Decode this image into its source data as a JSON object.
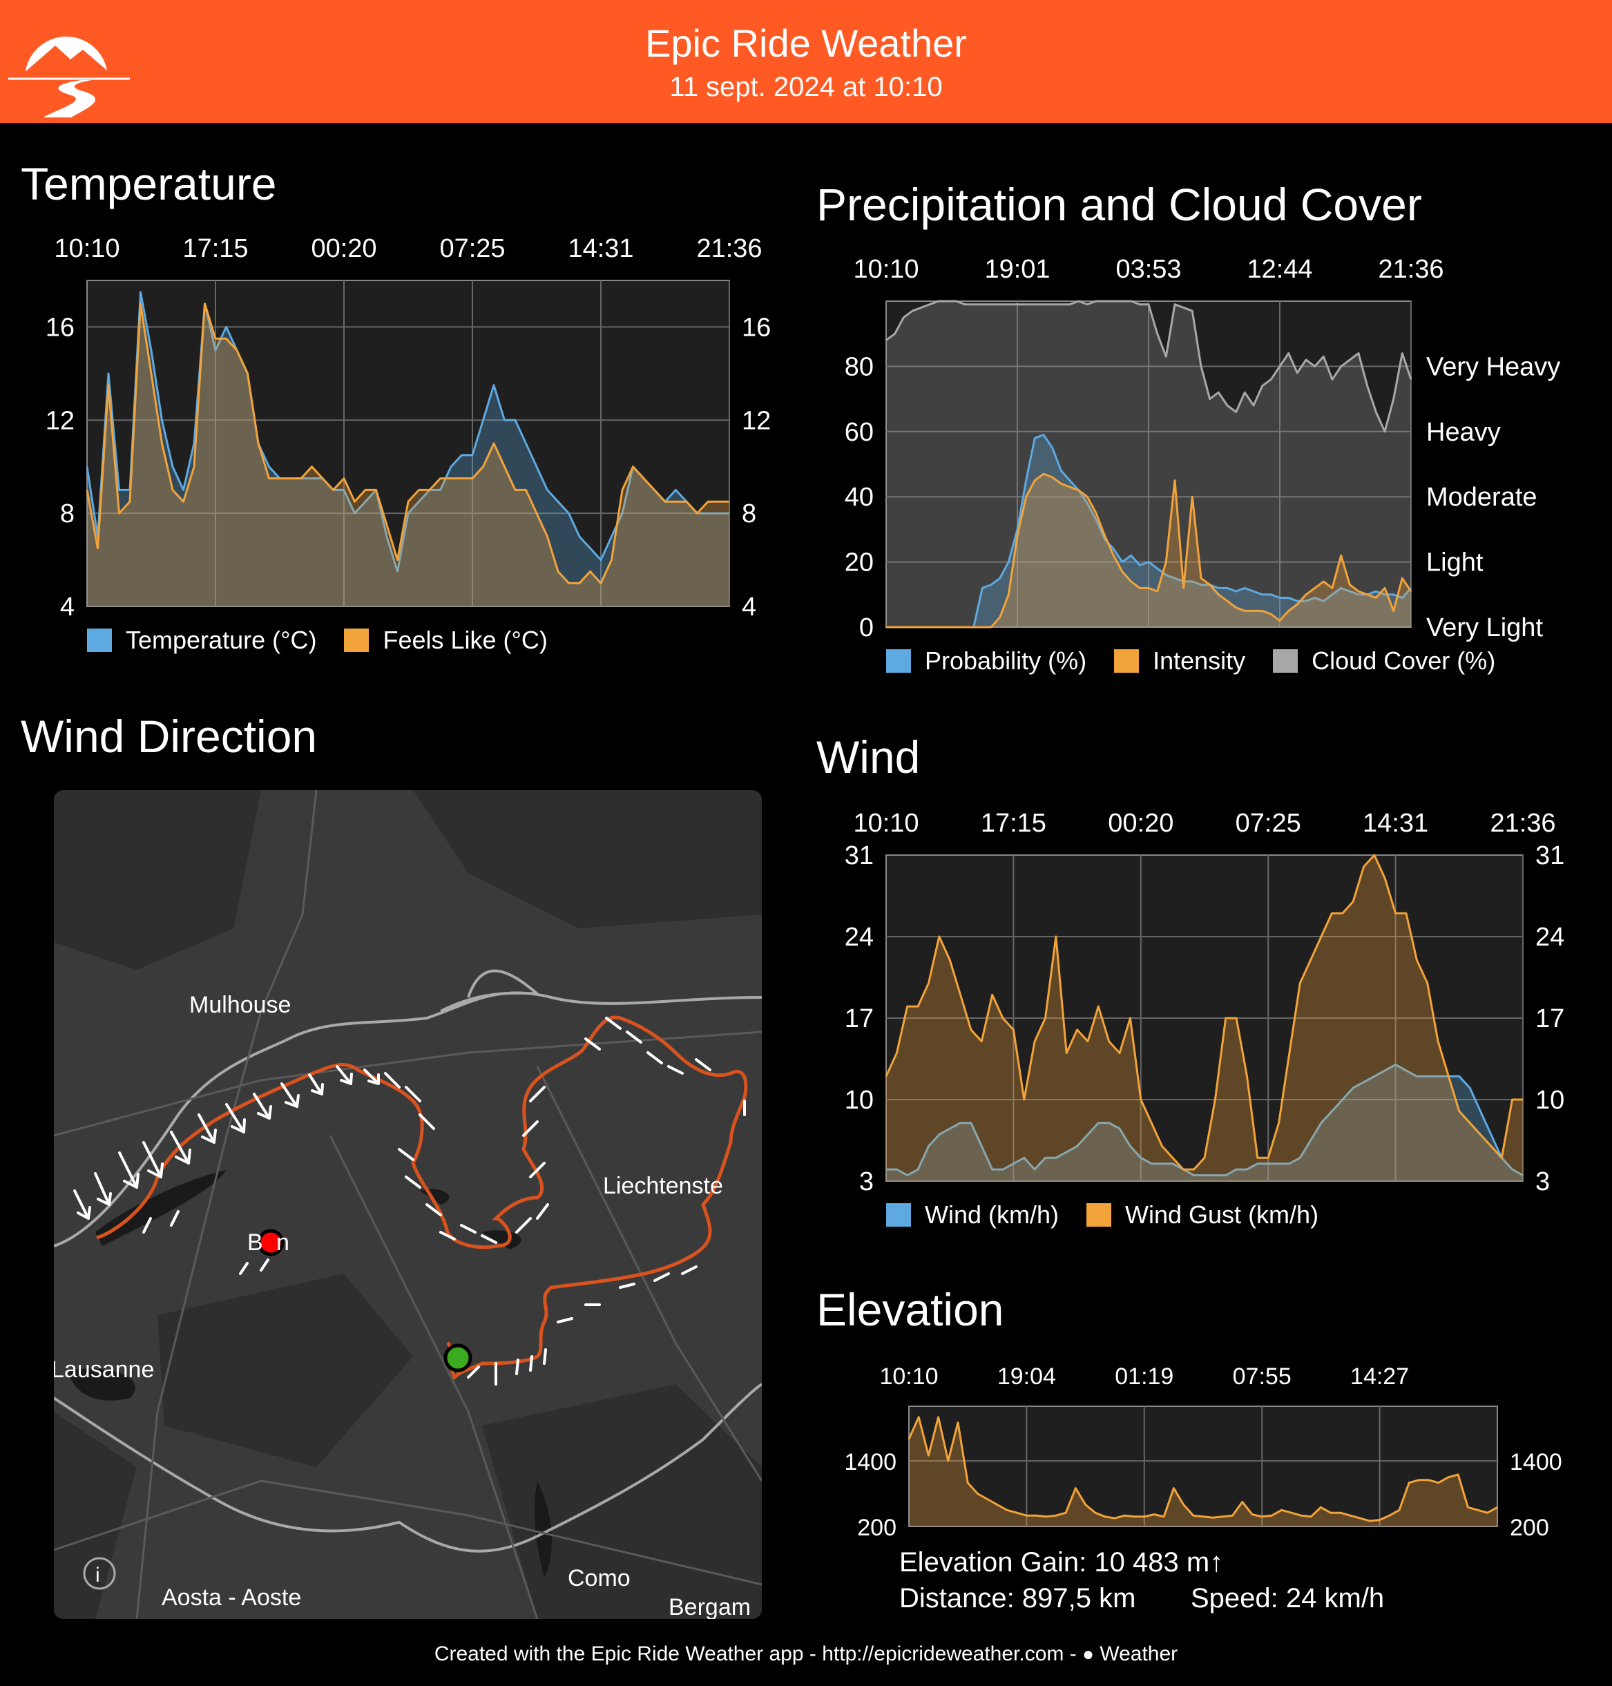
{
  "header": {
    "title": "Epic Ride Weather",
    "subtitle": "11 sept. 2024 at 10:10",
    "logo_icon": "mountain-road-logo-icon",
    "background": "#FF5A24"
  },
  "sections": {
    "temperature": "Temperature",
    "precipitation": "Precipitation and Cloud Cover",
    "wind_direction": "Wind Direction",
    "wind": "Wind",
    "elevation": "Elevation"
  },
  "colors": {
    "blue": "#5DA9E0",
    "orange": "#F2A33A",
    "gray": "#A8A8A8",
    "route": "#D9531E",
    "plot_bg": "#1F1F1F"
  },
  "map": {
    "labels": [
      "Mulhouse",
      "Liechtenste",
      "B",
      "n",
      "Lausanne",
      "Aosta - Aoste",
      "Como",
      "Bergam"
    ],
    "info_icon": "info-icon",
    "start_marker": "green-start-marker",
    "end_marker": "red-end-marker"
  },
  "elevation_stats": {
    "gain": "Elevation Gain: 10 483 m↑",
    "distance": "Distance: 897,5 km",
    "speed": "Speed: 24 km/h"
  },
  "footer": {
    "text": "Created with the Epic Ride Weather app - http://epicrideweather.com - ",
    "weather_label": "Weather",
    "apple_icon": "apple-icon"
  },
  "chart_data": [
    {
      "id": "temperature",
      "type": "area",
      "title": "Temperature",
      "x_ticks": [
        "10:10",
        "17:15",
        "00:20",
        "07:25",
        "14:31",
        "21:36"
      ],
      "x": [
        0,
        1,
        2,
        3,
        4,
        5,
        6,
        7,
        8,
        9,
        10,
        11,
        12,
        13,
        14,
        15,
        16,
        17,
        18,
        19,
        20,
        21,
        22,
        23,
        24,
        25,
        26,
        27,
        28,
        29,
        30,
        31,
        32,
        33,
        34,
        35,
        36,
        37,
        38,
        39,
        40,
        41,
        42,
        43,
        44,
        45,
        46,
        47,
        48,
        49,
        50,
        51,
        52,
        53,
        54,
        55,
        56,
        57,
        58,
        59,
        60
      ],
      "ylim": [
        4,
        18
      ],
      "yticks": [
        4,
        8,
        12,
        16
      ],
      "grid": true,
      "legend": "bottom",
      "series": [
        {
          "name": "Temperature (°C)",
          "color": "#5DA9E0",
          "values": [
            10,
            7,
            14,
            9,
            9,
            17.5,
            15,
            12,
            10,
            9,
            11,
            17,
            15,
            16,
            15,
            14,
            11,
            10,
            9.5,
            9.5,
            9.5,
            9.5,
            9.5,
            9,
            9,
            8,
            8.5,
            9,
            7,
            5.5,
            8,
            8.5,
            9,
            9,
            10,
            10.5,
            10.5,
            12,
            13.5,
            12,
            12,
            11,
            10,
            9,
            8.5,
            8,
            7,
            6.5,
            6,
            7,
            8,
            10,
            9.5,
            9,
            8.5,
            9,
            8.5,
            8,
            8,
            8,
            8
          ]
        },
        {
          "name": "Feels Like (°C)",
          "color": "#F2A33A",
          "values": [
            9,
            6.5,
            13.5,
            8,
            8.5,
            17,
            14,
            11,
            9,
            8.5,
            10,
            17,
            15.5,
            15.5,
            15,
            14,
            11,
            9.5,
            9.5,
            9.5,
            9.5,
            10,
            9.5,
            9,
            9.5,
            8.5,
            9,
            9,
            7.5,
            6,
            8.5,
            9,
            9,
            9.5,
            9.5,
            9.5,
            9.5,
            10,
            11,
            10,
            9,
            9,
            8,
            7,
            5.5,
            5,
            5,
            5.5,
            5,
            6,
            9,
            10,
            9.5,
            9,
            8.5,
            8.5,
            8.5,
            8,
            8.5,
            8.5,
            8.5
          ]
        }
      ]
    },
    {
      "id": "precipitation",
      "type": "area",
      "title": "Precipitation and Cloud Cover",
      "x_ticks": [
        "10:10",
        "19:01",
        "03:53",
        "12:44",
        "21:36"
      ],
      "x": [
        0,
        1,
        2,
        3,
        4,
        5,
        6,
        7,
        8,
        9,
        10,
        11,
        12,
        13,
        14,
        15,
        16,
        17,
        18,
        19,
        20,
        21,
        22,
        23,
        24,
        25,
        26,
        27,
        28,
        29,
        30,
        31,
        32,
        33,
        34,
        35,
        36,
        37,
        38,
        39,
        40,
        41,
        42,
        43,
        44,
        45,
        46,
        47,
        48,
        49,
        50,
        51,
        52,
        53,
        54,
        55,
        56,
        57,
        58,
        59,
        60
      ],
      "ylim": [
        0,
        100
      ],
      "yticks": [
        0,
        20,
        40,
        60,
        80
      ],
      "right_axis_labels": [
        "Very Light",
        "Light",
        "Moderate",
        "Heavy",
        "Very Heavy"
      ],
      "grid": true,
      "legend": "bottom",
      "series": [
        {
          "name": "Probability (%)",
          "color": "#5DA9E0",
          "values": [
            0,
            0,
            0,
            0,
            0,
            0,
            0,
            0,
            0,
            0,
            0,
            12,
            13,
            15,
            20,
            30,
            45,
            58,
            59,
            55,
            48,
            45,
            42,
            38,
            33,
            27,
            24,
            20,
            22,
            19,
            20,
            18,
            16,
            15,
            14,
            14,
            13,
            13,
            12,
            12,
            11,
            12,
            11,
            10,
            10,
            9,
            9,
            8,
            8,
            9,
            8,
            10,
            12,
            11,
            10,
            10,
            11,
            10,
            10,
            9,
            12
          ]
        },
        {
          "name": "Intensity",
          "color": "#F2A33A",
          "values": [
            0,
            0,
            0,
            0,
            0,
            0,
            0,
            0,
            0,
            0,
            0,
            0,
            0,
            3,
            10,
            28,
            40,
            45,
            47,
            46,
            44,
            43,
            42,
            40,
            35,
            28,
            22,
            17,
            14,
            12,
            12,
            11,
            20,
            45,
            12,
            40,
            15,
            13,
            10,
            8,
            6,
            5,
            5,
            5,
            4,
            2,
            5,
            7,
            10,
            12,
            14,
            12,
            22,
            13,
            11,
            10,
            9,
            12,
            5,
            15,
            11
          ]
        },
        {
          "name": "Cloud Cover (%)",
          "color": "#A8A8A8",
          "values": [
            88,
            90,
            95,
            97,
            98,
            99,
            100,
            100,
            100,
            99,
            99,
            99,
            99,
            99,
            99,
            99,
            99,
            99,
            99,
            99,
            99,
            99,
            100,
            99,
            100,
            100,
            100,
            100,
            100,
            99,
            99,
            90,
            83,
            99,
            98,
            97,
            80,
            70,
            72,
            68,
            66,
            72,
            68,
            74,
            76,
            80,
            84,
            78,
            82,
            80,
            83,
            76,
            80,
            82,
            84,
            74,
            66,
            60,
            70,
            84,
            76
          ]
        }
      ]
    },
    {
      "id": "wind",
      "type": "area",
      "title": "Wind",
      "x_ticks": [
        "10:10",
        "17:15",
        "00:20",
        "07:25",
        "14:31",
        "21:36"
      ],
      "x": [
        0,
        1,
        2,
        3,
        4,
        5,
        6,
        7,
        8,
        9,
        10,
        11,
        12,
        13,
        14,
        15,
        16,
        17,
        18,
        19,
        20,
        21,
        22,
        23,
        24,
        25,
        26,
        27,
        28,
        29,
        30,
        31,
        32,
        33,
        34,
        35,
        36,
        37,
        38,
        39,
        40,
        41,
        42,
        43,
        44,
        45,
        46,
        47,
        48,
        49,
        50,
        51,
        52,
        53,
        54,
        55,
        56,
        57,
        58,
        59,
        60
      ],
      "ylim": [
        3,
        31
      ],
      "yticks": [
        3,
        10,
        17,
        24,
        31
      ],
      "grid": true,
      "legend": "bottom",
      "series": [
        {
          "name": "Wind (km/h)",
          "color": "#5DA9E0",
          "values": [
            4,
            4,
            3.5,
            4,
            6,
            7,
            7.5,
            8,
            8,
            6,
            4,
            4,
            4.5,
            5,
            4,
            5,
            5,
            5.5,
            6,
            7,
            8,
            8,
            7.5,
            6,
            5,
            4.5,
            4.5,
            4.5,
            4,
            3.5,
            3.5,
            3.5,
            3.5,
            4,
            4,
            4.5,
            4.5,
            4.5,
            4.5,
            5,
            6.5,
            8,
            9,
            10,
            11,
            11.5,
            12,
            12.5,
            13,
            12.5,
            12,
            12,
            12,
            12,
            12,
            11,
            9,
            7,
            5,
            4,
            3.5
          ]
        },
        {
          "name": "Wind Gust (km/h)",
          "color": "#F2A33A",
          "values": [
            12,
            14,
            18,
            18,
            20,
            24,
            22,
            19,
            16,
            15,
            19,
            17,
            16,
            10,
            15,
            17,
            24,
            14,
            16,
            15,
            18,
            15,
            14,
            17,
            10,
            8,
            6,
            5,
            4,
            4,
            5,
            10,
            17,
            17,
            12,
            5,
            5,
            8,
            14,
            20,
            22,
            24,
            26,
            26,
            27,
            30,
            31,
            29,
            26,
            26,
            22,
            20,
            15,
            12,
            9,
            8,
            7,
            6,
            5,
            10,
            10
          ]
        }
      ]
    },
    {
      "id": "elevation",
      "type": "area",
      "title": "Elevation",
      "x_ticks": [
        "10:10",
        "19:04",
        "01:19",
        "07:55",
        "14:27"
      ],
      "x": [
        0,
        1,
        2,
        3,
        4,
        5,
        6,
        7,
        8,
        9,
        10,
        11,
        12,
        13,
        14,
        15,
        16,
        17,
        18,
        19,
        20,
        21,
        22,
        23,
        24,
        25,
        26,
        27,
        28,
        29,
        30,
        31,
        32,
        33,
        34,
        35,
        36,
        37,
        38,
        39,
        40,
        41,
        42,
        43,
        44,
        45,
        46,
        47,
        48,
        49,
        50,
        51,
        52,
        53,
        54,
        55,
        56,
        57,
        58,
        59,
        60
      ],
      "ylim": [
        200,
        2400
      ],
      "yticks": [
        200,
        1400
      ],
      "grid": true,
      "series": [
        {
          "name": "Elevation",
          "color": "#F2A33A",
          "values": [
            1800,
            2200,
            1500,
            2200,
            1400,
            2100,
            1000,
            800,
            700,
            600,
            500,
            450,
            400,
            400,
            380,
            400,
            450,
            900,
            600,
            450,
            380,
            350,
            400,
            380,
            380,
            420,
            380,
            900,
            600,
            400,
            380,
            360,
            380,
            400,
            650,
            420,
            380,
            400,
            500,
            450,
            400,
            380,
            550,
            450,
            450,
            400,
            350,
            300,
            320,
            400,
            500,
            1000,
            1050,
            1050,
            1000,
            1100,
            1150,
            550,
            500,
            450,
            550
          ]
        }
      ]
    }
  ]
}
